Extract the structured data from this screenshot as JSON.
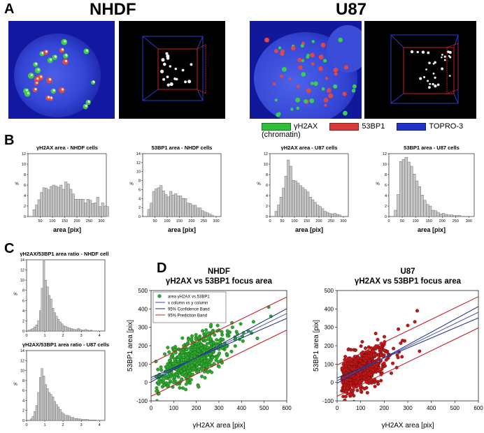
{
  "panels": {
    "a": {
      "letter": "A",
      "title_left": "NHDF",
      "title_right": "U87"
    },
    "b": {
      "letter": "B"
    },
    "c": {
      "letter": "C"
    },
    "d": {
      "letter": "D"
    }
  },
  "legend_a": [
    {
      "label": "γH2AX",
      "color": "#2fbf3a"
    },
    {
      "label": "53BP1",
      "color": "#d63a3a"
    },
    {
      "label": "TOPRO-3 (chromatin)",
      "color": "#2233cc"
    }
  ],
  "colors": {
    "bar_fill": "#c8c8c8",
    "bar_stroke": "#555555",
    "green": "#2fa82f",
    "red": "#c01818",
    "blue_line": "#1a2a8a",
    "red_line": "#c81e2e"
  },
  "chart_data": [
    {
      "id": "hist-h2ax-nhdf",
      "type": "bar",
      "title": "γH2AX area - NHDF cells",
      "xlabel": "area [pix]",
      "ylabel": "%",
      "xlim": [
        0,
        320
      ],
      "ylim": [
        0,
        12
      ],
      "xticks": [
        50,
        100,
        150,
        200,
        250,
        300
      ],
      "yticks": [
        0,
        2,
        4,
        6,
        8,
        10,
        12
      ],
      "bin_start": 20,
      "bin_width": 10,
      "values": [
        1.3,
        2.2,
        3.2,
        4.6,
        5.5,
        5.4,
        5.1,
        5.7,
        6.0,
        5.8,
        5.6,
        6.0,
        5.2,
        6.6,
        6.2,
        5.2,
        4.3,
        3.3,
        3.3,
        3.3,
        3.3,
        2.6,
        3.3,
        3.1,
        2.5,
        2.6,
        3.7,
        1.9,
        2.6,
        2.0,
        1.9
      ]
    },
    {
      "id": "hist-53bp1-nhdf",
      "type": "bar",
      "title": "53BP1 area - NHDF cells",
      "xlabel": "area [pix]",
      "ylabel": "%",
      "xlim": [
        0,
        320
      ],
      "ylim": [
        0,
        14
      ],
      "xticks": [
        50,
        100,
        150,
        200,
        250,
        300
      ],
      "yticks": [
        0,
        2,
        4,
        6,
        8,
        10,
        12,
        14
      ],
      "bin_start": 20,
      "bin_width": 10,
      "values": [
        1.6,
        3.0,
        5.6,
        6.2,
        6.4,
        6.9,
        5.7,
        4.9,
        4.4,
        5.6,
        4.8,
        5.1,
        4.6,
        4.6,
        4.0,
        4.0,
        3.0,
        2.9,
        2.5,
        2.5,
        1.9,
        1.9,
        1.3,
        1.0,
        0.8,
        0.5,
        0.3
      ]
    },
    {
      "id": "hist-h2ax-u87",
      "type": "bar",
      "title": "γH2AX area - U87 cells",
      "xlabel": "area [pix]",
      "ylabel": "%",
      "xlim": [
        0,
        320
      ],
      "ylim": [
        0,
        12
      ],
      "xticks": [
        0,
        50,
        100,
        150,
        200,
        250,
        300
      ],
      "yticks": [
        0,
        2,
        4,
        6,
        8,
        10,
        12
      ],
      "bin_start": 20,
      "bin_width": 10,
      "values": [
        1.0,
        2.2,
        3.7,
        5.4,
        7.7,
        10.8,
        9.6,
        6.9,
        6.8,
        6.4,
        5.9,
        5.5,
        5.1,
        4.7,
        3.7,
        3.2,
        2.7,
        2.2,
        1.9,
        1.5,
        1.0,
        0.8,
        0.6,
        0.5,
        0.6,
        0.4,
        0.3
      ]
    },
    {
      "id": "hist-53bp1-u87",
      "type": "bar",
      "title": "53BP1 area - U87 cells",
      "xlabel": "area [pix]",
      "ylabel": "%",
      "xlim": [
        0,
        320
      ],
      "ylim": [
        0,
        12
      ],
      "xticks": [
        0,
        50,
        100,
        150,
        200,
        250,
        300
      ],
      "yticks": [
        0,
        2,
        4,
        6,
        8,
        10,
        12
      ],
      "bin_start": 20,
      "bin_width": 10,
      "values": [
        1.2,
        4.2,
        10.5,
        10.9,
        11.3,
        10.4,
        9.6,
        8.1,
        6.8,
        5.7,
        4.1,
        3.1,
        2.3,
        2.0,
        1.2,
        1.1,
        0.8,
        0.5,
        0.6,
        0.4,
        0.3,
        0.3,
        0.2,
        0.2,
        0.2
      ]
    },
    {
      "id": "hist-ratio-nhdf",
      "type": "bar",
      "title": "γH2AX/53BP1 area ratio - NHDF cells",
      "xlabel": "",
      "ylabel": "%",
      "xlim": [
        0,
        4.3
      ],
      "ylim": [
        0,
        14
      ],
      "xticks": [
        0,
        1,
        2,
        3,
        4
      ],
      "yticks": [
        0,
        2,
        4,
        6,
        8,
        10,
        12,
        14
      ],
      "bin_start": 0.1,
      "bin_width": 0.1,
      "values": [
        0.2,
        0.3,
        0.5,
        0.8,
        1.2,
        2.0,
        4.0,
        8.4,
        13.8,
        10.0,
        8.7,
        7.0,
        6.3,
        4.5,
        3.6,
        2.9,
        2.3,
        1.8,
        1.4,
        1.0,
        0.9,
        0.7,
        0.6,
        0.5,
        0.4,
        0.3,
        0.3,
        0.5,
        0.3,
        0.2,
        0.2,
        0.3,
        0.2,
        0.1,
        0.2
      ]
    },
    {
      "id": "hist-ratio-u87",
      "type": "bar",
      "title": "γH2AX/53BP1 area ratio - U87 cells",
      "xlabel": "",
      "ylabel": "%",
      "xlim": [
        0,
        4.3
      ],
      "ylim": [
        0,
        14
      ],
      "xticks": [
        0,
        1,
        2,
        3,
        4
      ],
      "yticks": [
        0,
        2,
        4,
        6,
        8,
        10,
        12,
        14
      ],
      "bin_start": 0.2,
      "bin_width": 0.1,
      "values": [
        0.3,
        0.8,
        1.8,
        3.0,
        5.6,
        8.6,
        10.4,
        8.9,
        7.2,
        6.4,
        5.6,
        5.2,
        4.7,
        3.8,
        3.2,
        2.7,
        2.2,
        1.6,
        1.3,
        1.0,
        1.0,
        0.9,
        0.6,
        0.6,
        0.4,
        0.4,
        0.3,
        0.3,
        0.2,
        0.2,
        0.2,
        0.2,
        0.1,
        0.1,
        0.1,
        0.1
      ]
    },
    {
      "id": "scatter-nhdf",
      "type": "scatter",
      "title": "NHDF",
      "subtitle": "γH2AX vs 53BP1 focus area",
      "xlabel": "γH2AX area [pix]",
      "ylabel": "53BP1 area [pix]",
      "xlim": [
        0,
        600
      ],
      "ylim": [
        -100,
        500
      ],
      "xticks": [
        0,
        100,
        200,
        300,
        400,
        500,
        600
      ],
      "yticks": [
        -100,
        0,
        100,
        200,
        300,
        400,
        500
      ],
      "point_color": "green",
      "legend": [
        "area γH2AX vs 53BP1",
        "x column vs y column",
        "95% Confidence Band",
        "95% Prediction Band"
      ],
      "fit": {
        "intercept": 15,
        "slope": 0.6
      },
      "confidence_halfwidth": 12,
      "prediction_halfwidth": 90,
      "cloud": {
        "x_mean": 190,
        "x_sd": 70,
        "x_min": 20,
        "x_max": 560,
        "noise_sd": 55,
        "n": 620,
        "seed": 7
      },
      "outliers": [
        [
          520,
          410
        ],
        [
          530,
          360
        ],
        [
          360,
          300
        ],
        [
          430,
          280
        ],
        [
          470,
          240
        ]
      ]
    },
    {
      "id": "scatter-u87",
      "type": "scatter",
      "title": "U87",
      "subtitle": "γH2AX vs 53BP1 focus area",
      "xlabel": "γH2AX area [pix]",
      "ylabel": "53BP1 area [pix]",
      "xlim": [
        0,
        600
      ],
      "ylim": [
        -100,
        500
      ],
      "xticks": [
        0,
        100,
        200,
        300,
        400,
        500,
        600
      ],
      "yticks": [
        -100,
        0,
        100,
        200,
        300,
        400,
        500
      ],
      "point_color": "red",
      "legend": [],
      "fit": {
        "intercept": 10,
        "slope": 0.62
      },
      "confidence_halfwidth": 14,
      "prediction_halfwidth": 85,
      "cloud": {
        "x_mean": 100,
        "x_sd": 50,
        "x_min": 20,
        "x_max": 360,
        "noise_sd": 50,
        "n": 680,
        "seed": 11
      },
      "outliers": [
        [
          340,
          390
        ],
        [
          300,
          310
        ],
        [
          330,
          330
        ],
        [
          260,
          290
        ],
        [
          350,
          170
        ]
      ]
    }
  ]
}
